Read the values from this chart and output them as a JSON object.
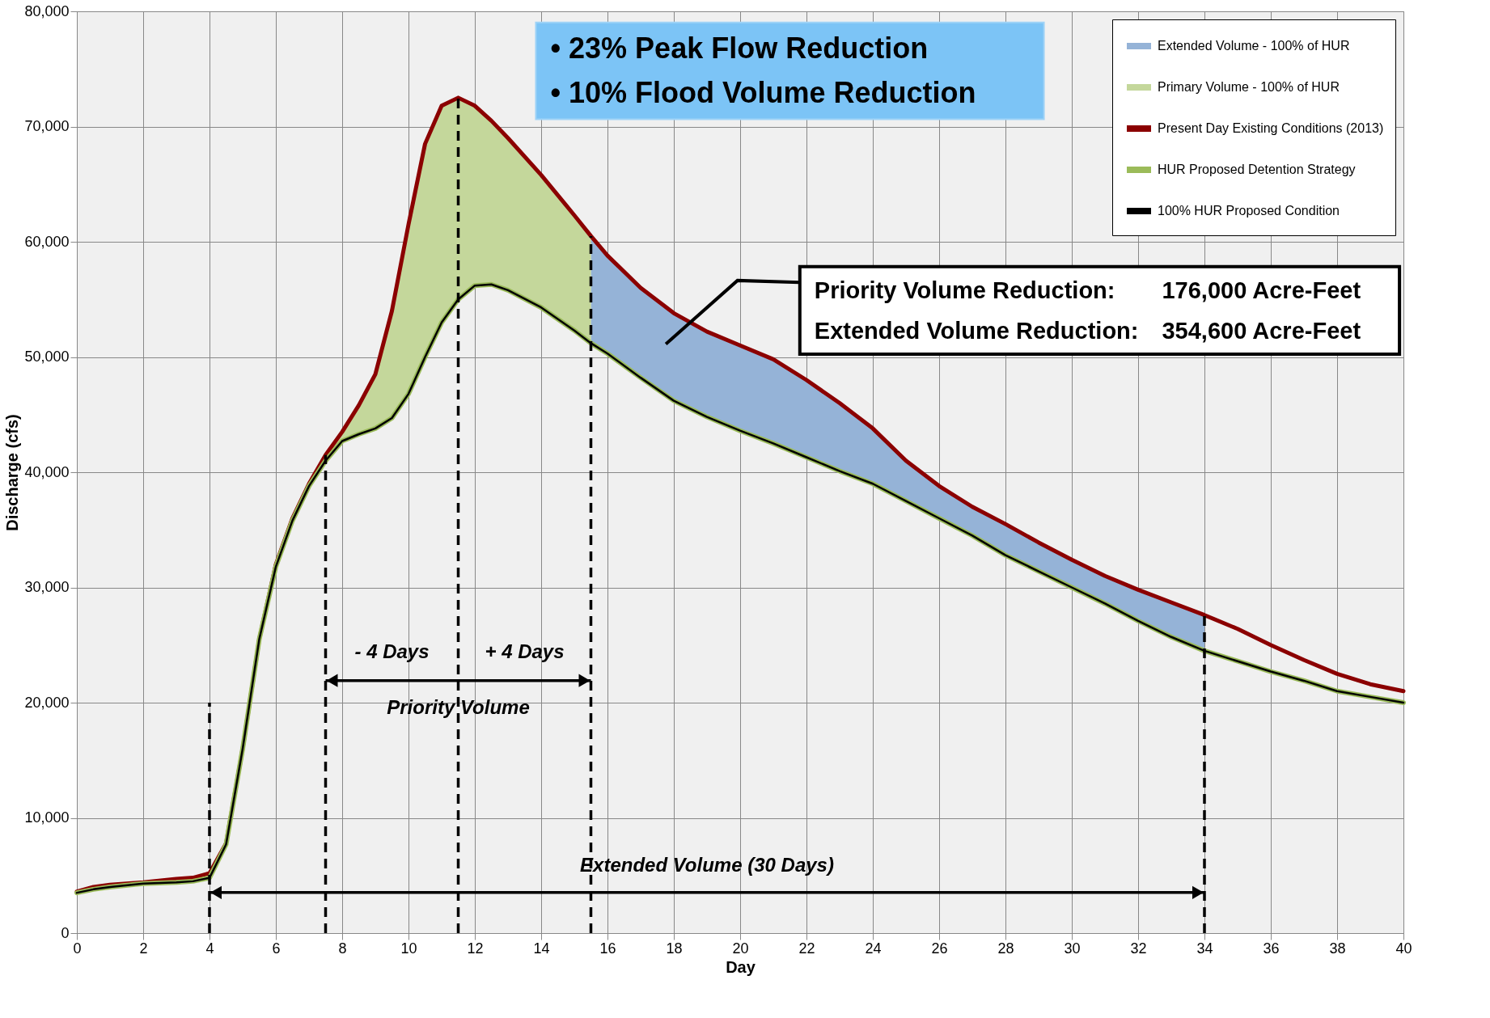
{
  "chart_data": {
    "type": "line",
    "xlabel": "Day",
    "ylabel": "Discharge (cfs)",
    "x": [
      0,
      0.5,
      1,
      2,
      3,
      3.5,
      4,
      4.5,
      5,
      5.5,
      6,
      6.5,
      7,
      7.5,
      8,
      8.5,
      9,
      9.5,
      10,
      10.5,
      11,
      11.5,
      12,
      12.5,
      13,
      14,
      15,
      15.5,
      16,
      17,
      18,
      19,
      20,
      21,
      22,
      23,
      24,
      25,
      26,
      27,
      28,
      29,
      30,
      31,
      32,
      33,
      34,
      35,
      36,
      37,
      38,
      39,
      40
    ],
    "series": [
      {
        "name": "Extended Volume - 100% of HUR",
        "type": "area",
        "color": "#95b3d7",
        "x": [
          15.5,
          16,
          17,
          18,
          19,
          20,
          21,
          22,
          23,
          24,
          25,
          26,
          27,
          28,
          29,
          30,
          31,
          32,
          33,
          34
        ],
        "values": [
          60500,
          58800,
          56000,
          53800,
          52200,
          51000,
          49800,
          48000,
          46000,
          43800,
          41000,
          38800,
          37000,
          35500,
          33900,
          32400,
          31000,
          29800,
          28700,
          27600
        ]
      },
      {
        "name": "Primary Volume - 100% of HUR",
        "type": "area",
        "color": "#c4d79b",
        "x": [
          7.5,
          8,
          8.5,
          9,
          9.5,
          10,
          10.5,
          11,
          11.5,
          12,
          12.5,
          13,
          14,
          15,
          15.5
        ],
        "values": [
          41500,
          43500,
          45800,
          48500,
          54000,
          61500,
          68500,
          71800,
          72500,
          71800,
          70500,
          69000,
          65800,
          62300,
          60500
        ]
      },
      {
        "name": "Present Day Existing Conditions (2013)",
        "color": "#8b0000",
        "values": [
          3600,
          4000,
          4200,
          4400,
          4700,
          4800,
          5200,
          7800,
          16000,
          25500,
          32000,
          36000,
          39000,
          41500,
          43500,
          45800,
          48500,
          54000,
          61500,
          68500,
          71800,
          72500,
          71800,
          70500,
          69000,
          65800,
          62300,
          60500,
          58800,
          56000,
          53800,
          52200,
          51000,
          49800,
          48000,
          46000,
          43800,
          41000,
          38800,
          37000,
          35500,
          33900,
          32400,
          31000,
          29800,
          28700,
          27600,
          26400,
          25000,
          23700,
          22500,
          21600,
          21000
        ]
      },
      {
        "name": "HUR Proposed Detention Strategy",
        "color": "#9bbb59",
        "values": [
          3500,
          3800,
          4000,
          4300,
          4400,
          4500,
          4800,
          7700,
          16000,
          25500,
          31800,
          35800,
          38800,
          41000,
          42700,
          43300,
          43800,
          44700,
          46800,
          50000,
          53000,
          55000,
          56200,
          56300,
          55800,
          54300,
          52300,
          51200,
          50300,
          48200,
          46200,
          44800,
          43600,
          42500,
          41300,
          40100,
          39000,
          37500,
          36000,
          34500,
          32800,
          31400,
          30000,
          28600,
          27100,
          25700,
          24500,
          23600,
          22700,
          21900,
          21000,
          20500,
          20000
        ]
      },
      {
        "name": "100% HUR Proposed Condition",
        "color": "#000000",
        "values": [
          3500,
          3800,
          4000,
          4300,
          4400,
          4500,
          4800,
          7700,
          16000,
          25500,
          31800,
          35800,
          38800,
          41000,
          42700,
          43300,
          43800,
          44700,
          46800,
          50000,
          53000,
          55000,
          56200,
          56300,
          55800,
          54300,
          52300,
          51200,
          50300,
          48200,
          46200,
          44800,
          43600,
          42500,
          41300,
          40100,
          39000,
          37500,
          36000,
          34500,
          32800,
          31400,
          30000,
          28600,
          27100,
          25700,
          24500,
          23600,
          22700,
          21900,
          21000,
          20500,
          20000
        ]
      }
    ],
    "xlim": [
      0,
      40
    ],
    "xticks": [
      0,
      2,
      4,
      6,
      8,
      10,
      12,
      14,
      16,
      18,
      20,
      22,
      24,
      26,
      28,
      30,
      32,
      34,
      36,
      38,
      40
    ],
    "ylim": [
      0,
      80000
    ],
    "yticks": [
      0,
      {
        "value": 10000,
        "label": "10,000"
      },
      {
        "value": 20000,
        "label": "20,000"
      },
      {
        "value": 30000,
        "label": "30,000"
      },
      {
        "value": 40000,
        "label": "40,000"
      },
      {
        "value": 50000,
        "label": "50,000"
      },
      {
        "value": 60000,
        "label": "60,000"
      },
      {
        "value": 70000,
        "label": "70,000"
      },
      {
        "value": 80000,
        "label": "80,000"
      }
    ],
    "grid": true,
    "legend": "top right",
    "ref_lines": [
      {
        "axis": "x",
        "value": 4,
        "color": "#000000",
        "line_style": "dashed"
      },
      {
        "axis": "x",
        "value": 7.5,
        "color": "#000000",
        "line_style": "dashed"
      },
      {
        "axis": "x",
        "value": 11.5,
        "color": "#000000",
        "line_style": "dashed"
      },
      {
        "axis": "x",
        "value": 15.5,
        "color": "#000000",
        "line_style": "dashed"
      },
      {
        "axis": "x",
        "value": 34,
        "color": "#000000",
        "line_style": "dashed"
      }
    ],
    "annotations": [
      "•  23% Peak Flow Reduction",
      "•  10% Flood Volume Reduction",
      "Priority Volume Reduction:",
      "176,000 Acre-Feet",
      "Extended Volume Reduction:",
      "354,600 Acre-Feet",
      "- 4 Days",
      "+ 4 Days",
      "Priority Volume",
      "Extended Volume (30 Days)"
    ]
  }
}
